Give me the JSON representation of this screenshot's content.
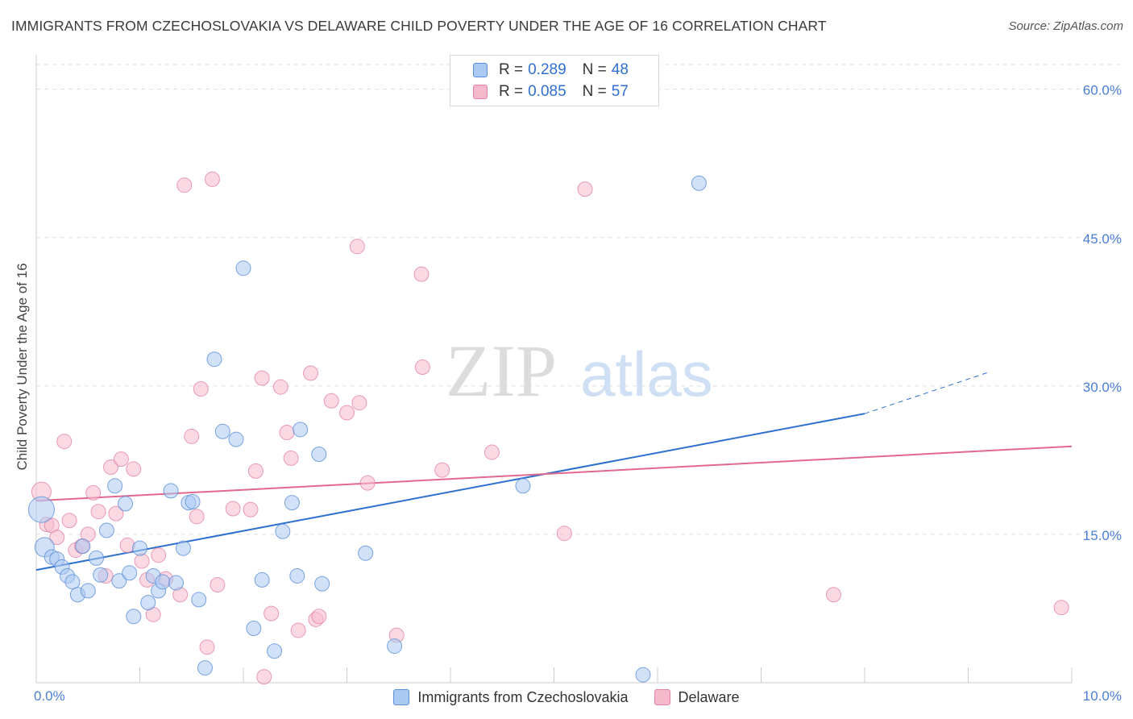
{
  "header": {
    "title": "IMMIGRANTS FROM CZECHOSLOVAKIA VS DELAWARE CHILD POVERTY UNDER THE AGE OF 16 CORRELATION CHART",
    "source": "Source: ZipAtlas.com"
  },
  "watermark": {
    "part1": "ZIP",
    "part2": "atlas"
  },
  "legend": {
    "rows": [
      {
        "r_label": "R =",
        "r_value": "0.289",
        "n_label": "N =",
        "n_value": "48"
      },
      {
        "r_label": "R =",
        "r_value": "0.085",
        "n_label": "N =",
        "n_value": "57"
      }
    ]
  },
  "colors": {
    "blue_fill": "#a9c8f2",
    "blue_stroke": "#5b8fd8",
    "blue_line": "#2d6fcf",
    "pink_fill": "#f6b9cc",
    "pink_stroke": "#e383a6",
    "pink_line": "#e0688f",
    "tick_label": "#4a7fd4",
    "grid": "#dddddd"
  },
  "chart_data": {
    "type": "scatter",
    "title": "IMMIGRANTS FROM CZECHOSLOVAKIA VS DELAWARE CHILD POVERTY UNDER THE AGE OF 16 CORRELATION CHART",
    "ylabel": "Child Poverty Under the Age of 16",
    "xlabel": "",
    "xlim": [
      0,
      10
    ],
    "ylim": [
      0,
      60
    ],
    "x_tick_labels": [
      {
        "value": 0,
        "label": "0.0%"
      },
      {
        "value": 10,
        "label": "10.0%"
      }
    ],
    "y_tick_labels": [
      {
        "value": 15,
        "label": "15.0%"
      },
      {
        "value": 30,
        "label": "30.0%"
      },
      {
        "value": 45,
        "label": "45.0%"
      },
      {
        "value": 60,
        "label": "60.0%"
      }
    ],
    "grid": true,
    "legend_position": "top-center",
    "series": [
      {
        "name": "Immigrants from Czechoslovakia",
        "R": 0.289,
        "N": 48,
        "trend": {
          "x_start": 0,
          "y_start": 11.4,
          "x_solid_end": 8.0,
          "y_solid_end": 27.2,
          "x_end": 9.2,
          "y_end": 31.4
        },
        "points": [
          [
            0.05,
            17.5,
            16
          ],
          [
            0.08,
            13.7,
            12
          ],
          [
            0.15,
            12.7,
            9
          ],
          [
            0.2,
            12.5,
            9
          ],
          [
            0.25,
            11.7,
            9
          ],
          [
            0.3,
            10.8,
            9
          ],
          [
            0.35,
            10.2,
            9
          ],
          [
            0.4,
            8.9,
            9
          ],
          [
            0.45,
            13.8,
            9
          ],
          [
            0.5,
            9.3,
            9
          ],
          [
            0.58,
            12.6,
            9
          ],
          [
            0.62,
            10.9,
            9
          ],
          [
            0.68,
            15.4,
            9
          ],
          [
            0.76,
            19.9,
            9
          ],
          [
            0.8,
            10.3,
            9
          ],
          [
            0.86,
            18.1,
            9
          ],
          [
            0.9,
            11.1,
            9
          ],
          [
            0.94,
            6.7,
            9
          ],
          [
            1.0,
            13.6,
            9
          ],
          [
            1.08,
            8.1,
            9
          ],
          [
            1.13,
            10.8,
            9
          ],
          [
            1.18,
            9.3,
            9
          ],
          [
            1.22,
            10.2,
            9
          ],
          [
            1.3,
            19.4,
            9
          ],
          [
            1.35,
            10.1,
            9
          ],
          [
            1.42,
            13.6,
            9
          ],
          [
            1.47,
            18.2,
            9
          ],
          [
            1.51,
            18.3,
            9
          ],
          [
            1.57,
            8.4,
            9
          ],
          [
            1.63,
            1.5,
            9
          ],
          [
            1.72,
            32.7,
            9
          ],
          [
            1.8,
            25.4,
            9
          ],
          [
            1.93,
            24.6,
            9
          ],
          [
            2.0,
            41.9,
            9
          ],
          [
            2.1,
            5.5,
            9
          ],
          [
            2.18,
            10.4,
            9
          ],
          [
            2.3,
            3.2,
            9
          ],
          [
            2.38,
            15.3,
            9
          ],
          [
            2.47,
            18.2,
            9
          ],
          [
            2.52,
            10.8,
            9
          ],
          [
            2.55,
            25.6,
            9
          ],
          [
            2.73,
            23.1,
            9
          ],
          [
            2.76,
            10.0,
            9
          ],
          [
            3.18,
            13.1,
            9
          ],
          [
            3.46,
            3.7,
            9
          ],
          [
            4.7,
            19.9,
            9
          ],
          [
            5.86,
            0.8,
            9
          ],
          [
            6.4,
            50.5,
            9
          ]
        ]
      },
      {
        "name": "Delaware",
        "R": 0.085,
        "N": 57,
        "trend": {
          "x_start": 0,
          "y_start": 18.4,
          "x_end": 10,
          "y_end": 23.9
        },
        "points": [
          [
            0.05,
            19.3,
            12
          ],
          [
            0.1,
            16.0,
            9
          ],
          [
            0.15,
            15.9,
            9
          ],
          [
            0.2,
            14.7,
            9
          ],
          [
            0.27,
            24.4,
            9
          ],
          [
            0.32,
            16.4,
            9
          ],
          [
            0.38,
            13.4,
            9
          ],
          [
            0.44,
            13.8,
            9
          ],
          [
            0.5,
            15.0,
            9
          ],
          [
            0.55,
            19.2,
            9
          ],
          [
            0.6,
            17.3,
            9
          ],
          [
            0.67,
            10.8,
            9
          ],
          [
            0.72,
            21.8,
            9
          ],
          [
            0.77,
            17.1,
            9
          ],
          [
            0.82,
            22.6,
            9
          ],
          [
            0.88,
            13.9,
            9
          ],
          [
            0.94,
            21.6,
            9
          ],
          [
            1.02,
            12.3,
            9
          ],
          [
            1.07,
            10.4,
            9
          ],
          [
            1.13,
            6.9,
            9
          ],
          [
            1.18,
            12.9,
            9
          ],
          [
            1.25,
            10.5,
            9
          ],
          [
            1.39,
            8.9,
            9
          ],
          [
            1.43,
            50.3,
            9
          ],
          [
            1.5,
            24.9,
            9
          ],
          [
            1.55,
            16.8,
            9
          ],
          [
            1.59,
            29.7,
            9
          ],
          [
            1.65,
            3.6,
            9
          ],
          [
            1.7,
            50.9,
            9
          ],
          [
            1.75,
            9.9,
            9
          ],
          [
            1.9,
            17.6,
            9
          ],
          [
            2.07,
            17.5,
            9
          ],
          [
            2.12,
            21.4,
            9
          ],
          [
            2.18,
            30.8,
            9
          ],
          [
            2.2,
            0.6,
            9
          ],
          [
            2.27,
            7.0,
            9
          ],
          [
            2.36,
            29.9,
            9
          ],
          [
            2.42,
            25.3,
            9
          ],
          [
            2.46,
            22.7,
            9
          ],
          [
            2.53,
            5.3,
            9
          ],
          [
            2.65,
            31.3,
            9
          ],
          [
            2.7,
            6.4,
            9
          ],
          [
            2.73,
            6.7,
            9
          ],
          [
            2.85,
            28.5,
            9
          ],
          [
            3.0,
            27.3,
            9
          ],
          [
            3.1,
            44.1,
            9
          ],
          [
            3.12,
            28.3,
            9
          ],
          [
            3.2,
            20.2,
            9
          ],
          [
            3.48,
            4.8,
            9
          ],
          [
            3.72,
            41.3,
            9
          ],
          [
            3.73,
            31.9,
            9
          ],
          [
            3.92,
            21.5,
            9
          ],
          [
            4.4,
            23.3,
            9
          ],
          [
            5.1,
            15.1,
            9
          ],
          [
            5.3,
            49.9,
            9
          ],
          [
            7.7,
            8.9,
            9
          ],
          [
            9.9,
            7.6,
            9
          ]
        ]
      }
    ]
  },
  "bottom_legend": {
    "items": [
      {
        "label": "Immigrants from Czechoslovakia"
      },
      {
        "label": "Delaware"
      }
    ]
  }
}
